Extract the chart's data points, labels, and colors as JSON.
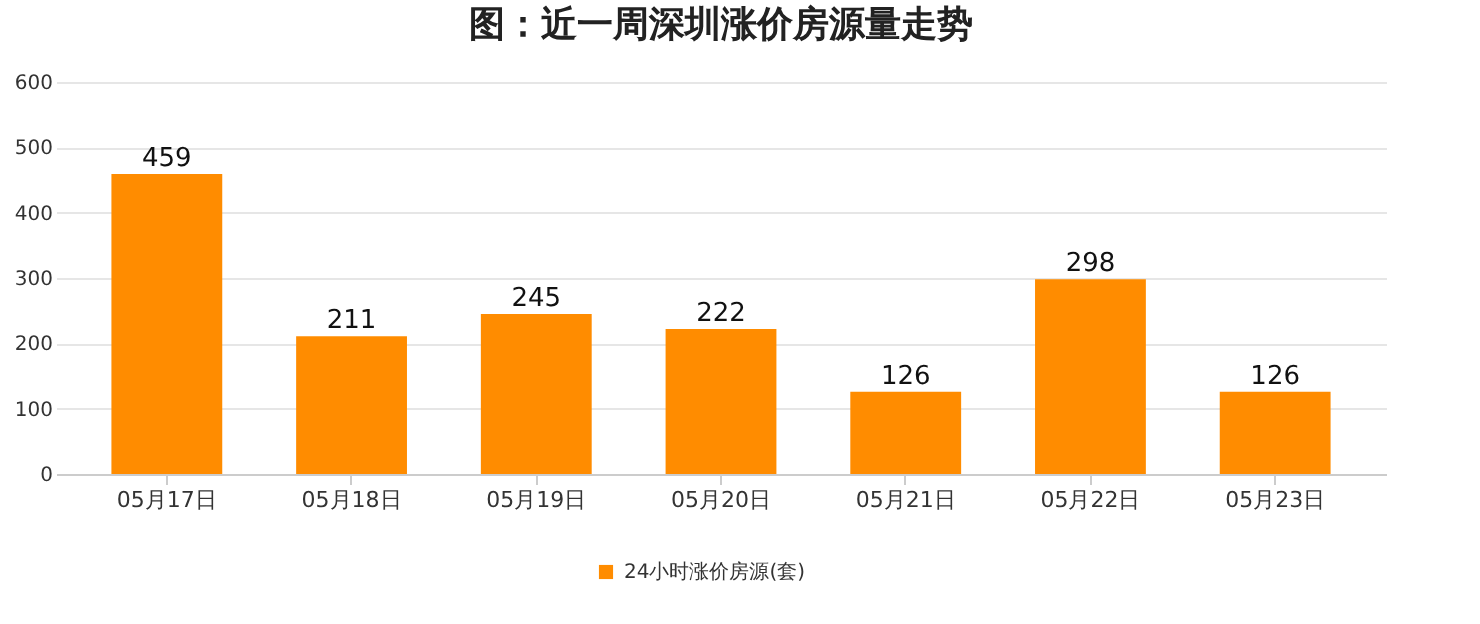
{
  "chart_data": {
    "type": "bar",
    "title": "图：近一周深圳涨价房源量走势",
    "categories": [
      "05月17日",
      "05月18日",
      "05月19日",
      "05月20日",
      "05月21日",
      "05月22日",
      "05月23日"
    ],
    "series": [
      {
        "name": "24小时涨价房源(套)",
        "color": "#ff8c00",
        "values": [
          459,
          211,
          245,
          222,
          126,
          298,
          126
        ]
      }
    ],
    "ylim": [
      0,
      600
    ],
    "yticks": [
      0,
      100,
      200,
      300,
      400,
      500,
      600
    ],
    "grid": "y",
    "legend": "bottom",
    "data_labels": true
  }
}
